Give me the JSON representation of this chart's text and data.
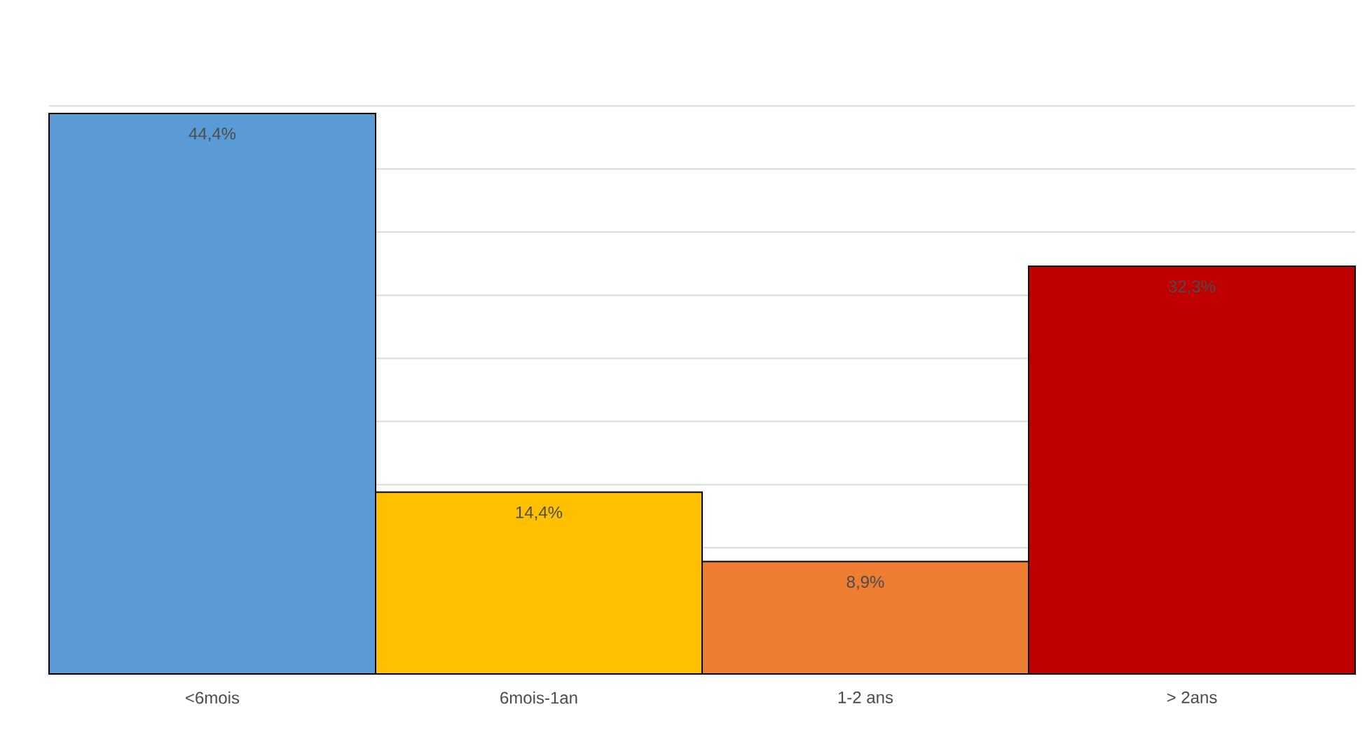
{
  "chart_data": {
    "type": "bar",
    "categories": [
      "<6mois",
      "6mois-1an",
      "1-2 ans",
      "> 2ans"
    ],
    "values": [
      44.4,
      14.4,
      8.9,
      32.3
    ],
    "value_labels": [
      "44,4%",
      "14,4%",
      "8,9%",
      "32,3%"
    ],
    "colors": [
      "#5b9bd5",
      "#ffc000",
      "#ed7d31",
      "#c00000"
    ],
    "tick_labels": "x",
    "grid": "y"
  }
}
